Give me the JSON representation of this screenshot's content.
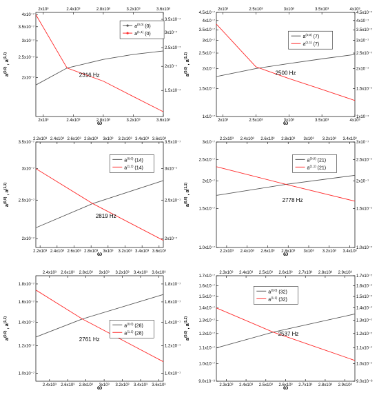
{
  "colors": {
    "series_a00": "#555555",
    "series_a11": "#ff2a2a",
    "frame": "#000000",
    "background": "#ffffff"
  },
  "chart_data": [
    {
      "type": "line",
      "panel": "top-left",
      "xlabel": "ω",
      "ylabel": "a(0,0), a(1,1)",
      "xlim": [
        1900,
        3600
      ],
      "ylim_left": [
        1.3e-07,
        4.1e-07
      ],
      "ylim_right": [
        1.1e-07,
        3.8e-07
      ],
      "yscale": "log",
      "x_ticks": [
        "2x10³",
        "2.4x10³",
        "2.8x10³",
        "3.2x10³",
        "3.6x10³"
      ],
      "x_ticks_top": [
        "2x10³",
        "2.4x10³",
        "2.8x10³",
        "3.2x10³",
        "3.6x10³"
      ],
      "y_ticks_left": [
        "4x10⁻⁷",
        "3.5x10⁻⁷",
        "3x10⁻⁷",
        "2.5x10⁻⁷",
        "2x10⁻⁷"
      ],
      "y_ticks_right": [
        "4x10⁻⁷",
        "3.5x10⁻⁷",
        "3x10⁻⁷",
        "2.5x10⁻⁷",
        "2x10⁻⁷",
        "1.5x10⁻⁷"
      ],
      "annotation": "2316 Hz",
      "legend_position": "top-right",
      "series": [
        {
          "name": "a(0,0) (0)",
          "sup": "(0,0)",
          "suffix": "(0)",
          "color": "#555555",
          "markers": true,
          "x": [
            1900,
            2316,
            2800,
            3200,
            3600
          ],
          "y": [
            1.84e-07,
            2.22e-07,
            2.44e-07,
            2.58e-07,
            2.68e-07
          ]
        },
        {
          "name": "a(1,1) (0)",
          "sup": "(1,1)",
          "suffix": "(0)",
          "color": "#ff2a2a",
          "markers": true,
          "x": [
            1900,
            2316,
            2800,
            3200,
            3600
          ],
          "y": [
            4e-07,
            2.22e-07,
            1.92e-07,
            1.62e-07,
            1.37e-07
          ]
        }
      ]
    },
    {
      "type": "line",
      "panel": "top-right",
      "xlabel": "ω",
      "ylabel": "a(0,0), a(1,1)",
      "xlim": [
        1900,
        4000
      ],
      "ylim_left": [
        1e-07,
        4.5e-07
      ],
      "ylim_right": [
        1e-07,
        4.5e-07
      ],
      "yscale": "log",
      "x_ticks": [
        "2x10³",
        "2.5x10³",
        "3x10³",
        "3.5x10³",
        "4x10³"
      ],
      "x_ticks_top": [
        "2x10³",
        "2.5x10³",
        "3x10³",
        "3.5x10³",
        "4x10³"
      ],
      "y_ticks_left": [
        "4.5x10⁻⁷",
        "4x10⁻⁷",
        "3.5x10⁻⁷",
        "3x10⁻⁷",
        "2.5x10⁻⁷",
        "2x10⁻⁷",
        "1.5x10⁻⁷",
        "1x10⁻⁷"
      ],
      "y_ticks_right": [
        "4.5x10⁻⁷",
        "4x10⁻⁷",
        "3.5x10⁻⁷",
        "3x10⁻⁷",
        "2.5x10⁻⁷",
        "2x10⁻⁷",
        "1.5x10⁻⁷",
        "1x10⁻⁷"
      ],
      "annotation": "2500 Hz",
      "legend_position": "top-right",
      "series": [
        {
          "name": "a(0,0) (7)",
          "sup": "(0,0)",
          "suffix": "(7)",
          "color": "#555555",
          "markers": false,
          "x": [
            1900,
            2500,
            3000,
            3500,
            4000
          ],
          "y": [
            1.78e-07,
            2e-07,
            2.15e-07,
            2.3e-07,
            2.45e-07
          ]
        },
        {
          "name": "a(1,1) (7)",
          "sup": "(1,1)",
          "suffix": "(7)",
          "color": "#ff2a2a",
          "markers": false,
          "x": [
            1900,
            2500,
            3000,
            3500,
            4000
          ],
          "y": [
            3.8e-07,
            2.05e-07,
            1.73e-07,
            1.48e-07,
            1.26e-07
          ]
        }
      ]
    },
    {
      "type": "line",
      "panel": "middle-left",
      "xlabel": "ω",
      "ylabel": "a(0,0), a(1,1)",
      "xlim": [
        2150,
        3650
      ],
      "ylim_left": [
        1.9e-07,
        3.5e-07
      ],
      "ylim_right": [
        1.9e-07,
        3.5e-07
      ],
      "yscale": "log",
      "x_ticks": [
        "2.2x10³",
        "2.4x10³",
        "2.6x10³",
        "2.8x10³",
        "3x10³",
        "3.2x10³",
        "3.4x10³",
        "3.6x10³"
      ],
      "x_ticks_top": [
        "2.2x10³",
        "2.4x10³",
        "2.6x10³",
        "2.8x10³",
        "3x10³",
        "3.2x10³",
        "3.4x10³",
        "3.6x10³"
      ],
      "y_ticks_left": [
        "3.5x10⁻⁷",
        "3x10⁻⁷",
        "2.5x10⁻⁷",
        "2x10⁻⁷"
      ],
      "y_ticks_right": [
        "3.5x10⁻⁷",
        "3x10⁻⁷",
        "2.5x10⁻⁷",
        "2x10⁻⁷"
      ],
      "annotation": "2819 Hz",
      "legend_position": "top-right",
      "series": [
        {
          "name": "a(0,0) (14)",
          "sup": "(0,0)",
          "suffix": "(14)",
          "color": "#555555",
          "markers": false,
          "x": [
            2150,
            2819,
            3650
          ],
          "y": [
            2.13e-07,
            2.45e-07,
            2.8e-07
          ]
        },
        {
          "name": "a(1,1) (14)",
          "sup": "(1,1)",
          "suffix": "(14)",
          "color": "#ff2a2a",
          "markers": false,
          "x": [
            2150,
            2819,
            3650
          ],
          "y": [
            3e-07,
            2.45e-07,
            1.98e-07
          ]
        }
      ]
    },
    {
      "type": "line",
      "panel": "middle-right",
      "xlabel": "ω",
      "ylabel": "a(0,0), a(1,1)",
      "xlim": [
        2100,
        3450
      ],
      "ylim_left": [
        1e-07,
        3e-07
      ],
      "ylim_right": [
        1e-07,
        3e-07
      ],
      "yscale": "log",
      "x_ticks": [
        "2.2x10³",
        "2.4x10³",
        "2.6x10³",
        "2.8x10³",
        "3x10³",
        "3.2x10³",
        "3.4x10³"
      ],
      "x_ticks_top": [
        "2.2x10³",
        "2.4x10³",
        "2.6x10³",
        "2.8x10³",
        "3x10³",
        "3.2x10³",
        "3.4x10³"
      ],
      "y_ticks_left": [
        "3x10⁻⁷",
        "2.5x10⁻⁷",
        "2x10⁻⁷",
        "1.5x10⁻⁷",
        "1.0x10⁻⁷"
      ],
      "y_ticks_right": [
        "3x10⁻⁷",
        "2.5x10⁻⁷",
        "2x10⁻⁷",
        "1.5x10⁻⁷",
        "1.0x10⁻⁷"
      ],
      "annotation": "2778 Hz",
      "legend_position": "top-right",
      "series": [
        {
          "name": "a(0,0) (21)",
          "sup": "(0,0)",
          "suffix": "(21)",
          "color": "#555555",
          "markers": false,
          "x": [
            2100,
            2778,
            3450
          ],
          "y": [
            1.72e-07,
            1.93e-07,
            2.12e-07
          ]
        },
        {
          "name": "a(1,1) (21)",
          "sup": "(1,1)",
          "suffix": "(21)",
          "color": "#ff2a2a",
          "markers": false,
          "x": [
            2100,
            2778,
            3450
          ],
          "y": [
            2.32e-07,
            1.93e-07,
            1.62e-07
          ]
        }
      ]
    },
    {
      "type": "line",
      "panel": "bottom-left",
      "xlabel": "ω",
      "ylabel": "a(0,0), a(1,1)",
      "xlim": [
        2250,
        3650
      ],
      "ylim_left": [
        9.5e-08,
        1.9e-07
      ],
      "ylim_right": [
        9.5e-08,
        1.9e-07
      ],
      "yscale": "log",
      "x_ticks": [
        "2.4x10³",
        "2.6x10³",
        "2.8x10³",
        "3x10³",
        "3.2x10³",
        "3.4x10³",
        "3.6x10³"
      ],
      "x_ticks_top": [
        "2.4x10³",
        "2.6x10³",
        "2.8x10³",
        "3x10³",
        "3.2x10³",
        "3.4x10³",
        "3.6x10³"
      ],
      "y_ticks_left": [
        "1.8x10⁻⁷",
        "1.6x10⁻⁷",
        "1.4x10⁻⁷",
        "1.2x10⁻⁷",
        "1.0x10⁻⁷"
      ],
      "y_ticks_right": [
        "1.8x10⁻⁷",
        "1.6x10⁻⁷",
        "1.4x10⁻⁷",
        "1.2x10⁻⁷",
        "1.0x10⁻⁷"
      ],
      "annotation": "2761 Hz",
      "legend_position": "middle-right",
      "series": [
        {
          "name": "a(0,0) (28)",
          "sup": "(0,0)",
          "suffix": "(28)",
          "color": "#555555",
          "markers": false,
          "x": [
            2250,
            2761,
            3650
          ],
          "y": [
            1.27e-07,
            1.43e-07,
            1.68e-07
          ]
        },
        {
          "name": "a(1,1) (28)",
          "sup": "(1,1)",
          "suffix": "(28)",
          "color": "#ff2a2a",
          "markers": false,
          "x": [
            2250,
            2761,
            3650
          ],
          "y": [
            1.73e-07,
            1.43e-07,
            1.08e-07
          ]
        }
      ]
    },
    {
      "type": "line",
      "panel": "bottom-right",
      "xlabel": "ω",
      "ylabel": "a(0,0), a(1,1)",
      "xlim": [
        2250,
        2950
      ],
      "ylim_left": [
        9e-08,
        1.7e-07
      ],
      "ylim_right": [
        9e-08,
        1.7e-07
      ],
      "yscale": "log",
      "x_ticks": [
        "2.3x10³",
        "2.4x10³",
        "2.5x10³",
        "2.6x10³",
        "2.7x10³",
        "2.8x10³",
        "2.9x10³"
      ],
      "x_ticks_top": [
        "2.3x10³",
        "2.4x10³",
        "2.5x10³",
        "2.6x10³",
        "2.7x10³",
        "2.8x10³",
        "2.9x10³"
      ],
      "y_ticks_left": [
        "1.7x10⁻⁷",
        "1.6x10⁻⁷",
        "1.5x10⁻⁷",
        "1.4x10⁻⁷",
        "1.3x10⁻⁷",
        "1.2x10⁻⁷",
        "1.1x10⁻⁷",
        "1.0x10⁻⁷",
        "9.0x10⁻⁸"
      ],
      "y_ticks_right": [
        "1.7x10⁻⁷",
        "1.6x10⁻⁷",
        "1.5x10⁻⁷",
        "1.4x10⁻⁷",
        "1.3x10⁻⁷",
        "1.2x10⁻⁷",
        "1.1x10⁻⁷",
        "1.0x10⁻⁷",
        "9.0x10⁻⁸"
      ],
      "annotation": "2537 Hz",
      "legend_position": "top-left",
      "series": [
        {
          "name": "a(0,0) (32)",
          "sup": "(0,0)",
          "suffix": "(32)",
          "color": "#555555",
          "markers": false,
          "x": [
            2250,
            2537,
            2950
          ],
          "y": [
            1.1e-07,
            1.21e-07,
            1.35e-07
          ]
        },
        {
          "name": "a(1,1) (32)",
          "sup": "(1,1)",
          "suffix": "(32)",
          "color": "#ff2a2a",
          "markers": false,
          "x": [
            2250,
            2537,
            2950
          ],
          "y": [
            1.4e-07,
            1.21e-07,
            1.02e-07
          ]
        }
      ]
    }
  ]
}
